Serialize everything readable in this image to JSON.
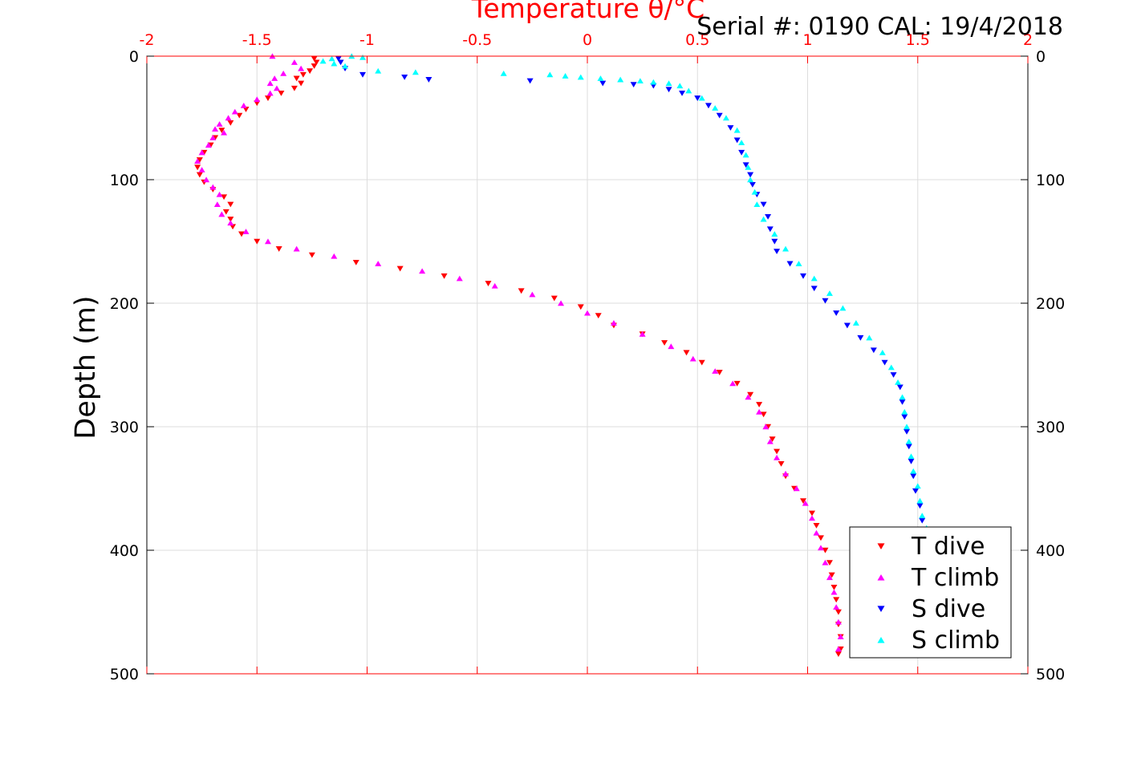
{
  "header": {
    "top_axis_title": "Temperature θ/°C",
    "serial_text": "Serial #: 0190  CAL: 19/4/2018"
  },
  "chart_data": {
    "type": "scatter",
    "ylabel": "Depth (m)",
    "y_reversed": true,
    "ylim": [
      0,
      500
    ],
    "yticks": [
      0,
      100,
      200,
      300,
      400,
      500
    ],
    "top_axis": {
      "label": "Temperature θ/°C",
      "xlim": [
        -2,
        2
      ],
      "ticks": [
        -2,
        -1.5,
        -1,
        -0.5,
        0,
        0.5,
        1,
        1.5,
        2
      ],
      "tick_labels": [
        "-2",
        "-1.5",
        "-1",
        "-0.5",
        "0",
        "0.5",
        "1",
        "1.5",
        "2"
      ],
      "color": "#ff0000"
    },
    "grid": true,
    "legend_position": "bottom-right",
    "series": [
      {
        "name": "T dive",
        "marker": "triangle-down",
        "color": "#ff0000",
        "points": [
          [
            -1.24,
            2
          ],
          [
            -1.23,
            5
          ],
          [
            -1.24,
            8
          ],
          [
            -1.26,
            12
          ],
          [
            -1.29,
            15
          ],
          [
            -1.32,
            18
          ],
          [
            -1.3,
            22
          ],
          [
            -1.33,
            26
          ],
          [
            -1.39,
            30
          ],
          [
            -1.45,
            34
          ],
          [
            -1.5,
            38
          ],
          [
            -1.55,
            43
          ],
          [
            -1.58,
            48
          ],
          [
            -1.62,
            54
          ],
          [
            -1.66,
            60
          ],
          [
            -1.69,
            66
          ],
          [
            -1.71,
            72
          ],
          [
            -1.74,
            78
          ],
          [
            -1.76,
            84
          ],
          [
            -1.77,
            90
          ],
          [
            -1.76,
            96
          ],
          [
            -1.74,
            102
          ],
          [
            -1.7,
            108
          ],
          [
            -1.65,
            114
          ],
          [
            -1.62,
            120
          ],
          [
            -1.64,
            126
          ],
          [
            -1.62,
            132
          ],
          [
            -1.61,
            138
          ],
          [
            -1.57,
            144
          ],
          [
            -1.5,
            150
          ],
          [
            -1.4,
            156
          ],
          [
            -1.25,
            161
          ],
          [
            -1.05,
            167
          ],
          [
            -0.85,
            172
          ],
          [
            -0.65,
            178
          ],
          [
            -0.45,
            184
          ],
          [
            -0.3,
            190
          ],
          [
            -0.15,
            196
          ],
          [
            -0.03,
            203
          ],
          [
            0.05,
            210
          ],
          [
            0.12,
            218
          ],
          [
            0.25,
            225
          ],
          [
            0.35,
            232
          ],
          [
            0.45,
            240
          ],
          [
            0.52,
            248
          ],
          [
            0.6,
            256
          ],
          [
            0.68,
            265
          ],
          [
            0.74,
            274
          ],
          [
            0.78,
            282
          ],
          [
            0.8,
            290
          ],
          [
            0.82,
            300
          ],
          [
            0.84,
            310
          ],
          [
            0.86,
            320
          ],
          [
            0.88,
            330
          ],
          [
            0.9,
            340
          ],
          [
            0.94,
            350
          ],
          [
            0.98,
            360
          ],
          [
            1.02,
            370
          ],
          [
            1.04,
            380
          ],
          [
            1.06,
            390
          ],
          [
            1.08,
            400
          ],
          [
            1.1,
            410
          ],
          [
            1.11,
            420
          ],
          [
            1.12,
            430
          ],
          [
            1.13,
            440
          ],
          [
            1.14,
            450
          ],
          [
            1.14,
            460
          ],
          [
            1.15,
            470
          ],
          [
            1.15,
            480
          ],
          [
            1.14,
            484
          ]
        ]
      },
      {
        "name": "T climb",
        "marker": "triangle-up",
        "color": "#ff00ff",
        "points": [
          [
            -1.43,
            0
          ],
          [
            -1.33,
            5
          ],
          [
            -1.3,
            10
          ],
          [
            -1.38,
            14
          ],
          [
            -1.42,
            18
          ],
          [
            -1.44,
            22
          ],
          [
            -1.41,
            26
          ],
          [
            -1.44,
            30
          ],
          [
            -1.5,
            35
          ],
          [
            -1.56,
            40
          ],
          [
            -1.6,
            45
          ],
          [
            -1.63,
            50
          ],
          [
            -1.67,
            55
          ],
          [
            -1.69,
            59
          ],
          [
            -1.65,
            62
          ],
          [
            -1.7,
            66
          ],
          [
            -1.72,
            72
          ],
          [
            -1.75,
            78
          ],
          [
            -1.77,
            85
          ],
          [
            -1.75,
            92
          ],
          [
            -1.73,
            100
          ],
          [
            -1.7,
            106
          ],
          [
            -1.67,
            112
          ],
          [
            -1.68,
            120
          ],
          [
            -1.66,
            128
          ],
          [
            -1.62,
            135
          ],
          [
            -1.55,
            142
          ],
          [
            -1.45,
            150
          ],
          [
            -1.32,
            156
          ],
          [
            -1.15,
            162
          ],
          [
            -0.95,
            168
          ],
          [
            -0.75,
            174
          ],
          [
            -0.58,
            180
          ],
          [
            -0.42,
            186
          ],
          [
            -0.25,
            193
          ],
          [
            -0.12,
            200
          ],
          [
            0.0,
            208
          ],
          [
            0.12,
            216
          ],
          [
            0.25,
            225
          ],
          [
            0.38,
            235
          ],
          [
            0.48,
            245
          ],
          [
            0.58,
            255
          ],
          [
            0.66,
            265
          ],
          [
            0.73,
            276
          ],
          [
            0.78,
            288
          ],
          [
            0.81,
            300
          ],
          [
            0.83,
            312
          ],
          [
            0.86,
            325
          ],
          [
            0.9,
            338
          ],
          [
            0.95,
            350
          ],
          [
            0.99,
            362
          ],
          [
            1.02,
            374
          ],
          [
            1.04,
            386
          ],
          [
            1.06,
            398
          ],
          [
            1.08,
            410
          ],
          [
            1.1,
            422
          ],
          [
            1.12,
            434
          ],
          [
            1.13,
            446
          ],
          [
            1.14,
            458
          ],
          [
            1.15,
            470
          ],
          [
            1.14,
            480
          ]
        ]
      },
      {
        "name": "S dive",
        "marker": "triangle-down",
        "color": "#0000ff",
        "points": [
          [
            -1.13,
            2
          ],
          [
            -1.12,
            5
          ],
          [
            -1.1,
            10
          ],
          [
            -1.02,
            15
          ],
          [
            -0.83,
            17
          ],
          [
            -0.72,
            19
          ],
          [
            -0.26,
            20
          ],
          [
            0.07,
            22
          ],
          [
            0.21,
            23
          ],
          [
            0.3,
            24
          ],
          [
            0.37,
            27
          ],
          [
            0.43,
            30
          ],
          [
            0.5,
            34
          ],
          [
            0.55,
            40
          ],
          [
            0.6,
            48
          ],
          [
            0.65,
            58
          ],
          [
            0.68,
            68
          ],
          [
            0.7,
            78
          ],
          [
            0.72,
            88
          ],
          [
            0.74,
            96
          ],
          [
            0.75,
            104
          ],
          [
            0.77,
            112
          ],
          [
            0.8,
            120
          ],
          [
            0.82,
            130
          ],
          [
            0.83,
            140
          ],
          [
            0.85,
            150
          ],
          [
            0.86,
            158
          ],
          [
            0.92,
            168
          ],
          [
            0.98,
            178
          ],
          [
            1.03,
            188
          ],
          [
            1.08,
            198
          ],
          [
            1.13,
            208
          ],
          [
            1.18,
            218
          ],
          [
            1.24,
            228
          ],
          [
            1.3,
            238
          ],
          [
            1.35,
            248
          ],
          [
            1.39,
            258
          ],
          [
            1.42,
            268
          ],
          [
            1.43,
            280
          ],
          [
            1.44,
            292
          ],
          [
            1.45,
            304
          ],
          [
            1.46,
            316
          ],
          [
            1.47,
            328
          ],
          [
            1.48,
            340
          ],
          [
            1.49,
            352
          ],
          [
            1.51,
            364
          ],
          [
            1.52,
            376
          ],
          [
            1.53,
            383
          ]
        ]
      },
      {
        "name": "S climb",
        "marker": "triangle-up",
        "color": "#00ffff",
        "points": [
          [
            -1.07,
            0
          ],
          [
            -1.02,
            1
          ],
          [
            -1.16,
            2
          ],
          [
            -1.2,
            4
          ],
          [
            -1.15,
            6
          ],
          [
            -1.1,
            8
          ],
          [
            -0.95,
            12
          ],
          [
            -0.78,
            13
          ],
          [
            -0.38,
            14
          ],
          [
            -0.17,
            15
          ],
          [
            -0.1,
            16
          ],
          [
            -0.03,
            17
          ],
          [
            0.06,
            18
          ],
          [
            0.15,
            19
          ],
          [
            0.24,
            20
          ],
          [
            0.3,
            21
          ],
          [
            0.37,
            22
          ],
          [
            0.42,
            24
          ],
          [
            0.46,
            28
          ],
          [
            0.52,
            34
          ],
          [
            0.58,
            42
          ],
          [
            0.63,
            50
          ],
          [
            0.68,
            60
          ],
          [
            0.7,
            70
          ],
          [
            0.72,
            80
          ],
          [
            0.73,
            90
          ],
          [
            0.74,
            100
          ],
          [
            0.76,
            110
          ],
          [
            0.77,
            120
          ],
          [
            0.8,
            132
          ],
          [
            0.85,
            144
          ],
          [
            0.9,
            156
          ],
          [
            0.96,
            168
          ],
          [
            1.03,
            180
          ],
          [
            1.1,
            192
          ],
          [
            1.16,
            204
          ],
          [
            1.22,
            216
          ],
          [
            1.28,
            228
          ],
          [
            1.34,
            240
          ],
          [
            1.38,
            252
          ],
          [
            1.41,
            264
          ],
          [
            1.43,
            276
          ],
          [
            1.44,
            288
          ],
          [
            1.45,
            300
          ],
          [
            1.46,
            312
          ],
          [
            1.47,
            324
          ],
          [
            1.48,
            336
          ],
          [
            1.5,
            348
          ],
          [
            1.51,
            360
          ],
          [
            1.52,
            372
          ],
          [
            1.54,
            382
          ]
        ]
      }
    ]
  }
}
